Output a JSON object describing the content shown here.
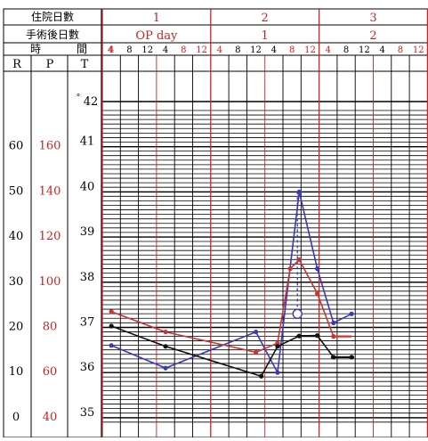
{
  "header": {
    "row1_label": "住院日數",
    "row2_label": "手術後日數",
    "row3_label_left": "時",
    "row3_label_right": "間",
    "days": [
      "1",
      "2",
      "3"
    ],
    "postop_days": [
      "OP day",
      "1",
      "2"
    ],
    "time_labels": [
      "4",
      "8",
      "12",
      "4",
      "8",
      "12",
      "4",
      "8",
      "12",
      "4",
      "8",
      "12",
      "4",
      "8",
      "12",
      "4",
      "8",
      "12"
    ]
  },
  "axes": {
    "r_label": "R",
    "p_label": "P",
    "t_label": "T",
    "r_ticks": [
      "60",
      "50",
      "40",
      "30",
      "20",
      "10",
      "0"
    ],
    "p_ticks": [
      "160",
      "140",
      "120",
      "100",
      "80",
      "60",
      "40"
    ],
    "t_ticks": [
      "42",
      "41",
      "40",
      "39",
      "38",
      "37",
      "36",
      "35"
    ],
    "t_degree_mark": "°"
  },
  "colors": {
    "grid_red": "#cc2222",
    "grid_black": "#000000",
    "temperature": "#3a3ab8",
    "pulse": "#cc3333",
    "respiration": "#111111"
  },
  "chart_data": {
    "type": "line",
    "title": "",
    "x_unit_time_slots": [
      "D1 4",
      "D1 8",
      "D1 12",
      "D1 4p",
      "D1 8p",
      "D1 12p",
      "D2 4",
      "D2 8",
      "D2 12",
      "D2 4p",
      "D2 8p",
      "D2 12p",
      "D3 4",
      "D3 8",
      "D3 12",
      "D3 4p",
      "D3 8p",
      "D3 12p"
    ],
    "ylim_T": [
      35,
      42
    ],
    "ylim_P": [
      40,
      180
    ],
    "ylim_R": [
      0,
      70
    ],
    "series": [
      {
        "name": "T",
        "scale": "T",
        "points": [
          {
            "slot": 1,
            "value": 36.6
          },
          {
            "slot": 4,
            "value": 36.1
          },
          {
            "slot": 9,
            "value": 36.9
          },
          {
            "slot": 10.2,
            "value": 36.0
          },
          {
            "slot": 11.4,
            "value": 40.0
          },
          {
            "slot": 12.4,
            "value": 38.3
          },
          {
            "slot": 13.3,
            "value": 37.1
          },
          {
            "slot": 14.3,
            "value": 37.3
          }
        ],
        "fever_drop": {
          "from_slot": 11.3,
          "from_value": 40.0,
          "to_value": 37.3
        }
      },
      {
        "name": "P",
        "scale": "P",
        "points": [
          {
            "slot": 1,
            "value": 87
          },
          {
            "slot": 4,
            "value": 78
          },
          {
            "slot": 9,
            "value": 69
          },
          {
            "slot": 10.2,
            "value": 73
          },
          {
            "slot": 10.9,
            "value": 106
          },
          {
            "slot": 11.4,
            "value": 110
          },
          {
            "slot": 12.4,
            "value": 95
          },
          {
            "slot": 13.3,
            "value": 76
          }
        ],
        "dash_segment": {
          "start_slot": 13.3,
          "end_slot": 14.3,
          "value": 76
        }
      },
      {
        "name": "R",
        "scale": "R",
        "points": [
          {
            "slot": 1,
            "value": 20.3
          },
          {
            "slot": 4,
            "value": 15.8
          },
          {
            "slot": 9.3,
            "value": 9.2
          },
          {
            "slot": 10.2,
            "value": 15.8
          },
          {
            "slot": 11.4,
            "value": 18.1
          },
          {
            "slot": 12.4,
            "value": 18.2
          },
          {
            "slot": 13.3,
            "value": 13.4
          },
          {
            "slot": 14.3,
            "value": 13.4
          }
        ]
      }
    ]
  }
}
